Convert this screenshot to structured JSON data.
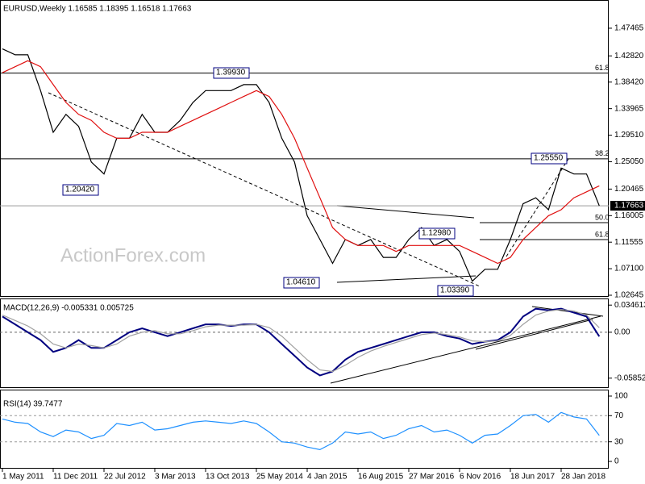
{
  "chart_data": [
    {
      "type": "line",
      "title": "EURUSD,Weekly  1.16585 1.18395 1.16518 1.17663",
      "series": [
        {
          "color": "#000000",
          "values": [
            1.44,
            1.43,
            1.43,
            1.37,
            1.3,
            1.33,
            1.31,
            1.25,
            1.23,
            1.29,
            1.29,
            1.33,
            1.3,
            1.3,
            1.32,
            1.35,
            1.37,
            1.37,
            1.37,
            1.38,
            1.38,
            1.35,
            1.29,
            1.25,
            1.16,
            1.12,
            1.08,
            1.12,
            1.11,
            1.12,
            1.09,
            1.09,
            1.12,
            1.14,
            1.11,
            1.12,
            1.1,
            1.05,
            1.07,
            1.07,
            1.12,
            1.18,
            1.19,
            1.17,
            1.24,
            1.23,
            1.23,
            1.17663
          ]
        },
        {
          "color": "#e01010",
          "values": [
            1.4,
            1.41,
            1.42,
            1.41,
            1.38,
            1.35,
            1.33,
            1.32,
            1.3,
            1.29,
            1.29,
            1.3,
            1.3,
            1.3,
            1.31,
            1.32,
            1.33,
            1.34,
            1.35,
            1.36,
            1.37,
            1.36,
            1.33,
            1.29,
            1.24,
            1.19,
            1.14,
            1.12,
            1.11,
            1.11,
            1.11,
            1.1,
            1.11,
            1.11,
            1.11,
            1.11,
            1.11,
            1.1,
            1.09,
            1.08,
            1.09,
            1.12,
            1.14,
            1.16,
            1.17,
            1.19,
            1.2,
            1.21
          ]
        }
      ],
      "ylim": [
        1.0251,
        1.522
      ],
      "yticks": [
        {
          "value": 1.02645,
          "label": "1.02645"
        },
        {
          "value": 1.071,
          "label": "1.07100"
        },
        {
          "value": 1.11555,
          "label": "1.11555"
        },
        {
          "value": 1.16005,
          "label": "1.16005"
        },
        1.20465,
        {
          "value": 1.2505,
          "label": "1.25050"
        },
        {
          "value": 1.2951,
          "label": "1.29510"
        },
        1.33965,
        {
          "value": 1.3842,
          "label": "1.38420"
        },
        {
          "value": 1.4282,
          "label": "1.42820"
        },
        1.47465
      ],
      "current_price": 1.17663,
      "fib_levels": [
        {
          "label": "61.8",
          "value": 1.3993
        },
        {
          "label": "38.2",
          "value": 1.2555
        },
        {
          "label": "50.0",
          "value": 1.1483
        },
        {
          "label": "61.8",
          "value": 1.1199
        }
      ],
      "price_labels": [
        "1.39930",
        "1.20420",
        "1.04610",
        "1.03390",
        "1.25550",
        "1.12980"
      ],
      "watermark": "ActionForex.com"
    },
    {
      "type": "line",
      "title": "MACD(12,26,9) -0.005331 0.005725",
      "series": [
        {
          "color": "#000080",
          "values": [
            0.02,
            0.01,
            0.0,
            -0.01,
            -0.025,
            -0.02,
            -0.01,
            -0.02,
            -0.02,
            -0.01,
            0.0,
            0.005,
            0.0,
            -0.005,
            0.0,
            0.005,
            0.01,
            0.01,
            0.008,
            0.01,
            0.01,
            0.0,
            -0.015,
            -0.03,
            -0.045,
            -0.055,
            -0.05,
            -0.035,
            -0.025,
            -0.02,
            -0.015,
            -0.01,
            -0.005,
            0.0,
            0.0,
            -0.005,
            -0.008,
            -0.015,
            -0.012,
            -0.01,
            0.0,
            0.02,
            0.03,
            0.028,
            0.03,
            0.025,
            0.02,
            -0.005331
          ]
        },
        {
          "color": "#a0a0a0",
          "values": [
            0.022,
            0.015,
            0.008,
            -0.002,
            -0.015,
            -0.02,
            -0.015,
            -0.017,
            -0.02,
            -0.015,
            -0.005,
            0.0,
            0.002,
            -0.002,
            -0.002,
            0.002,
            0.007,
            0.009,
            0.009,
            0.009,
            0.01,
            0.006,
            -0.005,
            -0.02,
            -0.035,
            -0.048,
            -0.05,
            -0.042,
            -0.032,
            -0.024,
            -0.018,
            -0.013,
            -0.008,
            -0.003,
            -0.001,
            -0.003,
            -0.006,
            -0.011,
            -0.012,
            -0.011,
            -0.004,
            0.01,
            0.022,
            0.027,
            0.029,
            0.027,
            0.022,
            0.005725
          ]
        }
      ],
      "ylim": [
        -0.068,
        0.041
      ],
      "yticks": [
        -0.058527,
        {
          "value": 0,
          "label": "0.00"
        },
        0.034613
      ],
      "zero_line": true
    },
    {
      "type": "line",
      "title": "RSI(14) 39.7477",
      "categories": [
        "1 May 2011",
        null,
        null,
        null,
        "11 Dec 2011",
        null,
        null,
        null,
        "22 Jul 2012",
        null,
        null,
        null,
        "3 Mar 2013",
        null,
        null,
        null,
        "13 Oct 2013",
        null,
        null,
        null,
        "25 May 2014",
        null,
        null,
        null,
        "4 Jan 2015",
        null,
        null,
        null,
        "16 Aug 2015",
        null,
        null,
        null,
        "27 Mar 2016",
        null,
        null,
        null,
        "6 Nov 2016",
        null,
        null,
        null,
        "18 Jun 2017",
        null,
        null,
        null,
        "28 Jan 2018",
        null,
        null,
        null
      ],
      "series": [
        {
          "color": "#1e90ff",
          "values": [
            65,
            60,
            58,
            45,
            38,
            48,
            45,
            35,
            40,
            58,
            55,
            60,
            48,
            50,
            55,
            60,
            62,
            60,
            58,
            62,
            58,
            45,
            30,
            28,
            22,
            18,
            28,
            45,
            42,
            45,
            35,
            40,
            50,
            55,
            45,
            48,
            40,
            28,
            40,
            42,
            55,
            70,
            72,
            60,
            75,
            68,
            65,
            39.7477
          ]
        }
      ],
      "ylim": [
        0,
        100
      ],
      "yticks": [
        0,
        30,
        70,
        100
      ],
      "grid": true
    }
  ]
}
